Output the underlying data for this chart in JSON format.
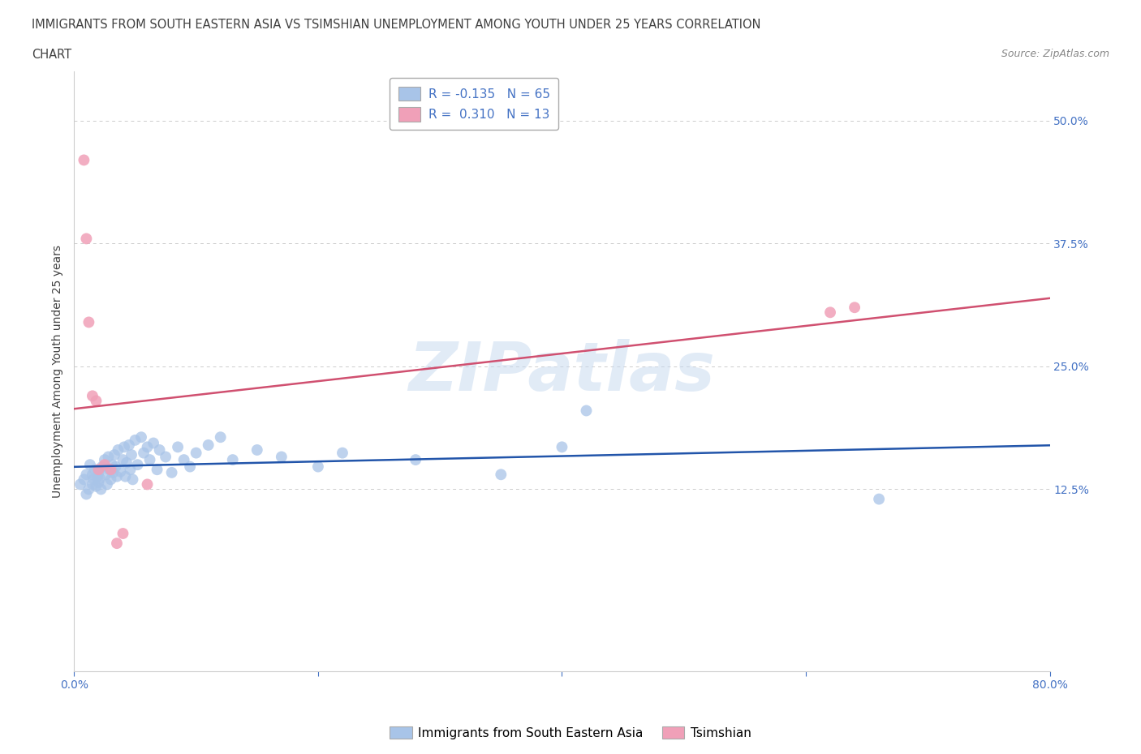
{
  "title_line1": "IMMIGRANTS FROM SOUTH EASTERN ASIA VS TSIMSHIAN UNEMPLOYMENT AMONG YOUTH UNDER 25 YEARS CORRELATION",
  "title_line2": "CHART",
  "source": "Source: ZipAtlas.com",
  "ylabel": "Unemployment Among Youth under 25 years",
  "watermark": "ZIPatlas",
  "blue_R": -0.135,
  "blue_N": 65,
  "pink_R": 0.31,
  "pink_N": 13,
  "blue_color": "#a8c4e8",
  "pink_color": "#f0a0b8",
  "blue_line_color": "#2255aa",
  "pink_line_color": "#d05070",
  "xmin": 0.0,
  "xmax": 0.8,
  "ymin": -0.06,
  "ymax": 0.55,
  "yticks": [
    0.0,
    0.125,
    0.25,
    0.375,
    0.5
  ],
  "ytick_labels": [
    "",
    "12.5%",
    "25.0%",
    "37.5%",
    "50.0%"
  ],
  "xticks": [
    0.0,
    0.2,
    0.4,
    0.6,
    0.8
  ],
  "xtick_labels": [
    "0.0%",
    "",
    "",
    "",
    "80.0%"
  ],
  "blue_scatter_x": [
    0.005,
    0.008,
    0.01,
    0.01,
    0.012,
    0.013,
    0.015,
    0.015,
    0.016,
    0.017,
    0.018,
    0.019,
    0.02,
    0.02,
    0.021,
    0.022,
    0.023,
    0.025,
    0.026,
    0.027,
    0.028,
    0.029,
    0.03,
    0.031,
    0.032,
    0.033,
    0.034,
    0.035,
    0.036,
    0.038,
    0.04,
    0.041,
    0.042,
    0.043,
    0.045,
    0.046,
    0.047,
    0.048,
    0.05,
    0.052,
    0.055,
    0.057,
    0.06,
    0.062,
    0.065,
    0.068,
    0.07,
    0.075,
    0.08,
    0.085,
    0.09,
    0.095,
    0.1,
    0.11,
    0.12,
    0.13,
    0.15,
    0.17,
    0.2,
    0.22,
    0.28,
    0.35,
    0.4,
    0.66,
    0.42
  ],
  "blue_scatter_y": [
    0.13,
    0.135,
    0.12,
    0.14,
    0.125,
    0.15,
    0.13,
    0.14,
    0.135,
    0.145,
    0.128,
    0.138,
    0.132,
    0.142,
    0.136,
    0.125,
    0.148,
    0.155,
    0.14,
    0.13,
    0.158,
    0.145,
    0.135,
    0.15,
    0.142,
    0.16,
    0.148,
    0.138,
    0.165,
    0.143,
    0.155,
    0.168,
    0.138,
    0.152,
    0.17,
    0.145,
    0.16,
    0.135,
    0.175,
    0.15,
    0.178,
    0.162,
    0.168,
    0.155,
    0.172,
    0.145,
    0.165,
    0.158,
    0.142,
    0.168,
    0.155,
    0.148,
    0.162,
    0.17,
    0.178,
    0.155,
    0.165,
    0.158,
    0.148,
    0.162,
    0.155,
    0.14,
    0.168,
    0.115,
    0.205
  ],
  "pink_scatter_x": [
    0.008,
    0.01,
    0.012,
    0.015,
    0.018,
    0.02,
    0.025,
    0.03,
    0.035,
    0.04,
    0.06,
    0.62,
    0.64
  ],
  "pink_scatter_y": [
    0.46,
    0.38,
    0.295,
    0.22,
    0.215,
    0.145,
    0.15,
    0.145,
    0.07,
    0.08,
    0.13,
    0.305,
    0.31
  ],
  "legend_label_blue": "Immigrants from South Eastern Asia",
  "legend_label_pink": "Tsimshian",
  "axis_color": "#cccccc",
  "grid_color": "#cccccc",
  "tick_label_color": "#4472c4",
  "title_color": "#404040",
  "ylabel_color": "#404040",
  "source_color": "#888888"
}
